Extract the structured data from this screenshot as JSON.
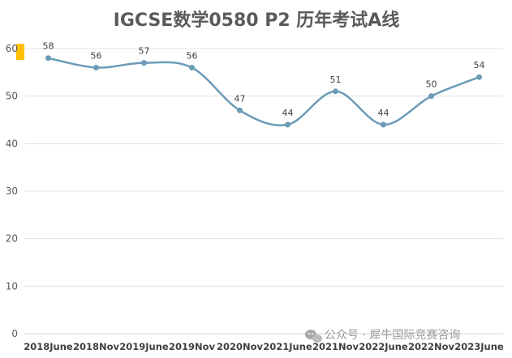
{
  "chart_data": {
    "type": "line",
    "title": "IGCSE数学0580 P2 历年考试A线",
    "categories": [
      "2018June",
      "2018Nov",
      "2019June",
      "2019Nov",
      "2020Nov",
      "2021June",
      "2021Nov",
      "2022June",
      "2022Nov",
      "2023June"
    ],
    "series": [
      {
        "values": [
          58,
          56,
          57,
          56,
          47,
          44,
          51,
          44,
          50,
          54
        ]
      }
    ],
    "ylim": [
      0,
      60
    ],
    "yticks": [
      0,
      10,
      20,
      30,
      40,
      50,
      60
    ],
    "grid": true,
    "smooth": true,
    "line_color": "#6b9bb8",
    "marker_color": "#6b9bb8",
    "highlight_color": "#ffc000"
  },
  "watermark": {
    "icon": "wechat-icon",
    "text": "公众号 · 犀牛国际竞赛咨询"
  }
}
